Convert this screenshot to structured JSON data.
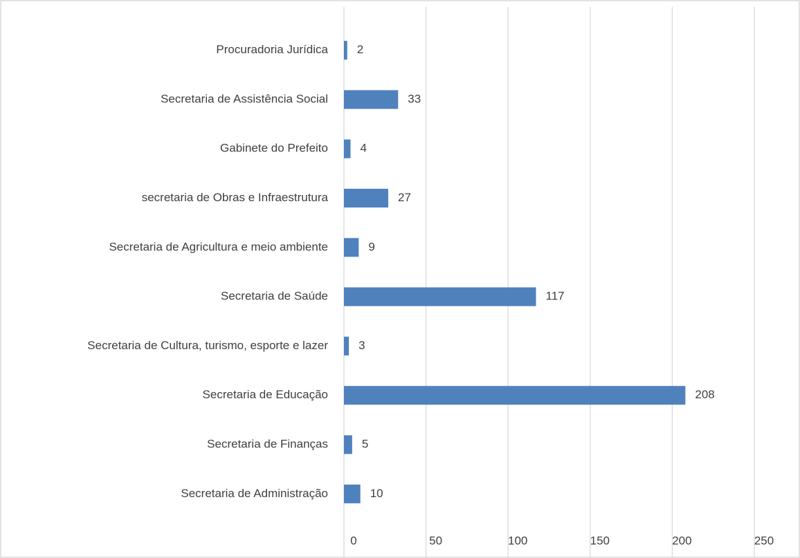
{
  "chart_data": {
    "type": "bar",
    "orientation": "horizontal",
    "categories": [
      "Procuradoria Jurídica",
      "Secretaria de Assistência Social",
      "Gabinete do Prefeito",
      "secretaria de Obras e Infraestrutura",
      "Secretaria de Agricultura e meio ambiente",
      "Secretaria de Saúde",
      "Secretaria de Cultura, turismo, esporte e lazer",
      "Secretaria de Educação",
      "Secretaria de Finanças",
      "Secretaria de Administração"
    ],
    "values": [
      2,
      33,
      4,
      27,
      9,
      117,
      3,
      208,
      5,
      10
    ],
    "color": "#4f81bd",
    "xlim": [
      0,
      250
    ],
    "xticks": [
      0,
      50,
      100,
      150,
      200,
      250
    ],
    "grid": true
  }
}
